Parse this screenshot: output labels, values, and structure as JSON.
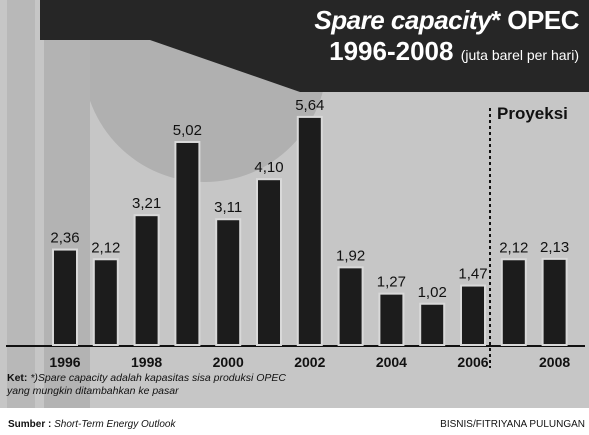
{
  "chart_data": {
    "type": "bar",
    "title": "Spare capacity* OPEC",
    "title_plain": "Spare capacity",
    "title_suffix": "* OPEC",
    "subtitle": "1996-2008",
    "unit": "(juta barel per hari)",
    "categories": [
      "1996",
      "1997",
      "1998",
      "1999",
      "2000",
      "2001",
      "2002",
      "2003",
      "2004",
      "2005",
      "2006",
      "2007",
      "2008"
    ],
    "x_tick_labels": [
      "1996",
      "",
      "1998",
      "",
      "2000",
      "",
      "2002",
      "",
      "2004",
      "",
      "2006",
      "",
      "2008"
    ],
    "values": [
      2.36,
      2.12,
      3.21,
      5.02,
      3.11,
      4.1,
      5.64,
      1.92,
      1.27,
      1.02,
      1.47,
      2.12,
      2.13
    ],
    "data_labels": [
      "2,36",
      "2,12",
      "3,21",
      "5,02",
      "3,11",
      "4,10",
      "5,64",
      "1,92",
      "1,27",
      "1,02",
      "1,47",
      "2,12",
      "2,13"
    ],
    "projection_label": "Proyeksi",
    "projection_categories": [
      "2007",
      "2008"
    ],
    "ylim": [
      0,
      6.8
    ],
    "grid": false,
    "colors": {
      "bar": "#1c1c1c",
      "bar_outline": "#d9d9d9",
      "title_band": "#262626",
      "background": "#c6c6c6"
    }
  },
  "note": {
    "key": "Ket:",
    "line1": " *)Spare capacity adalah kapasitas sisa produksi OPEC",
    "line2": "yang mungkin ditambahkan ke pasar"
  },
  "footer": {
    "source_key": "Sumber :",
    "source_text": " Short-Term Energy Outlook",
    "credit": "BISNIS/FITRIYANA PULUNGAN"
  }
}
